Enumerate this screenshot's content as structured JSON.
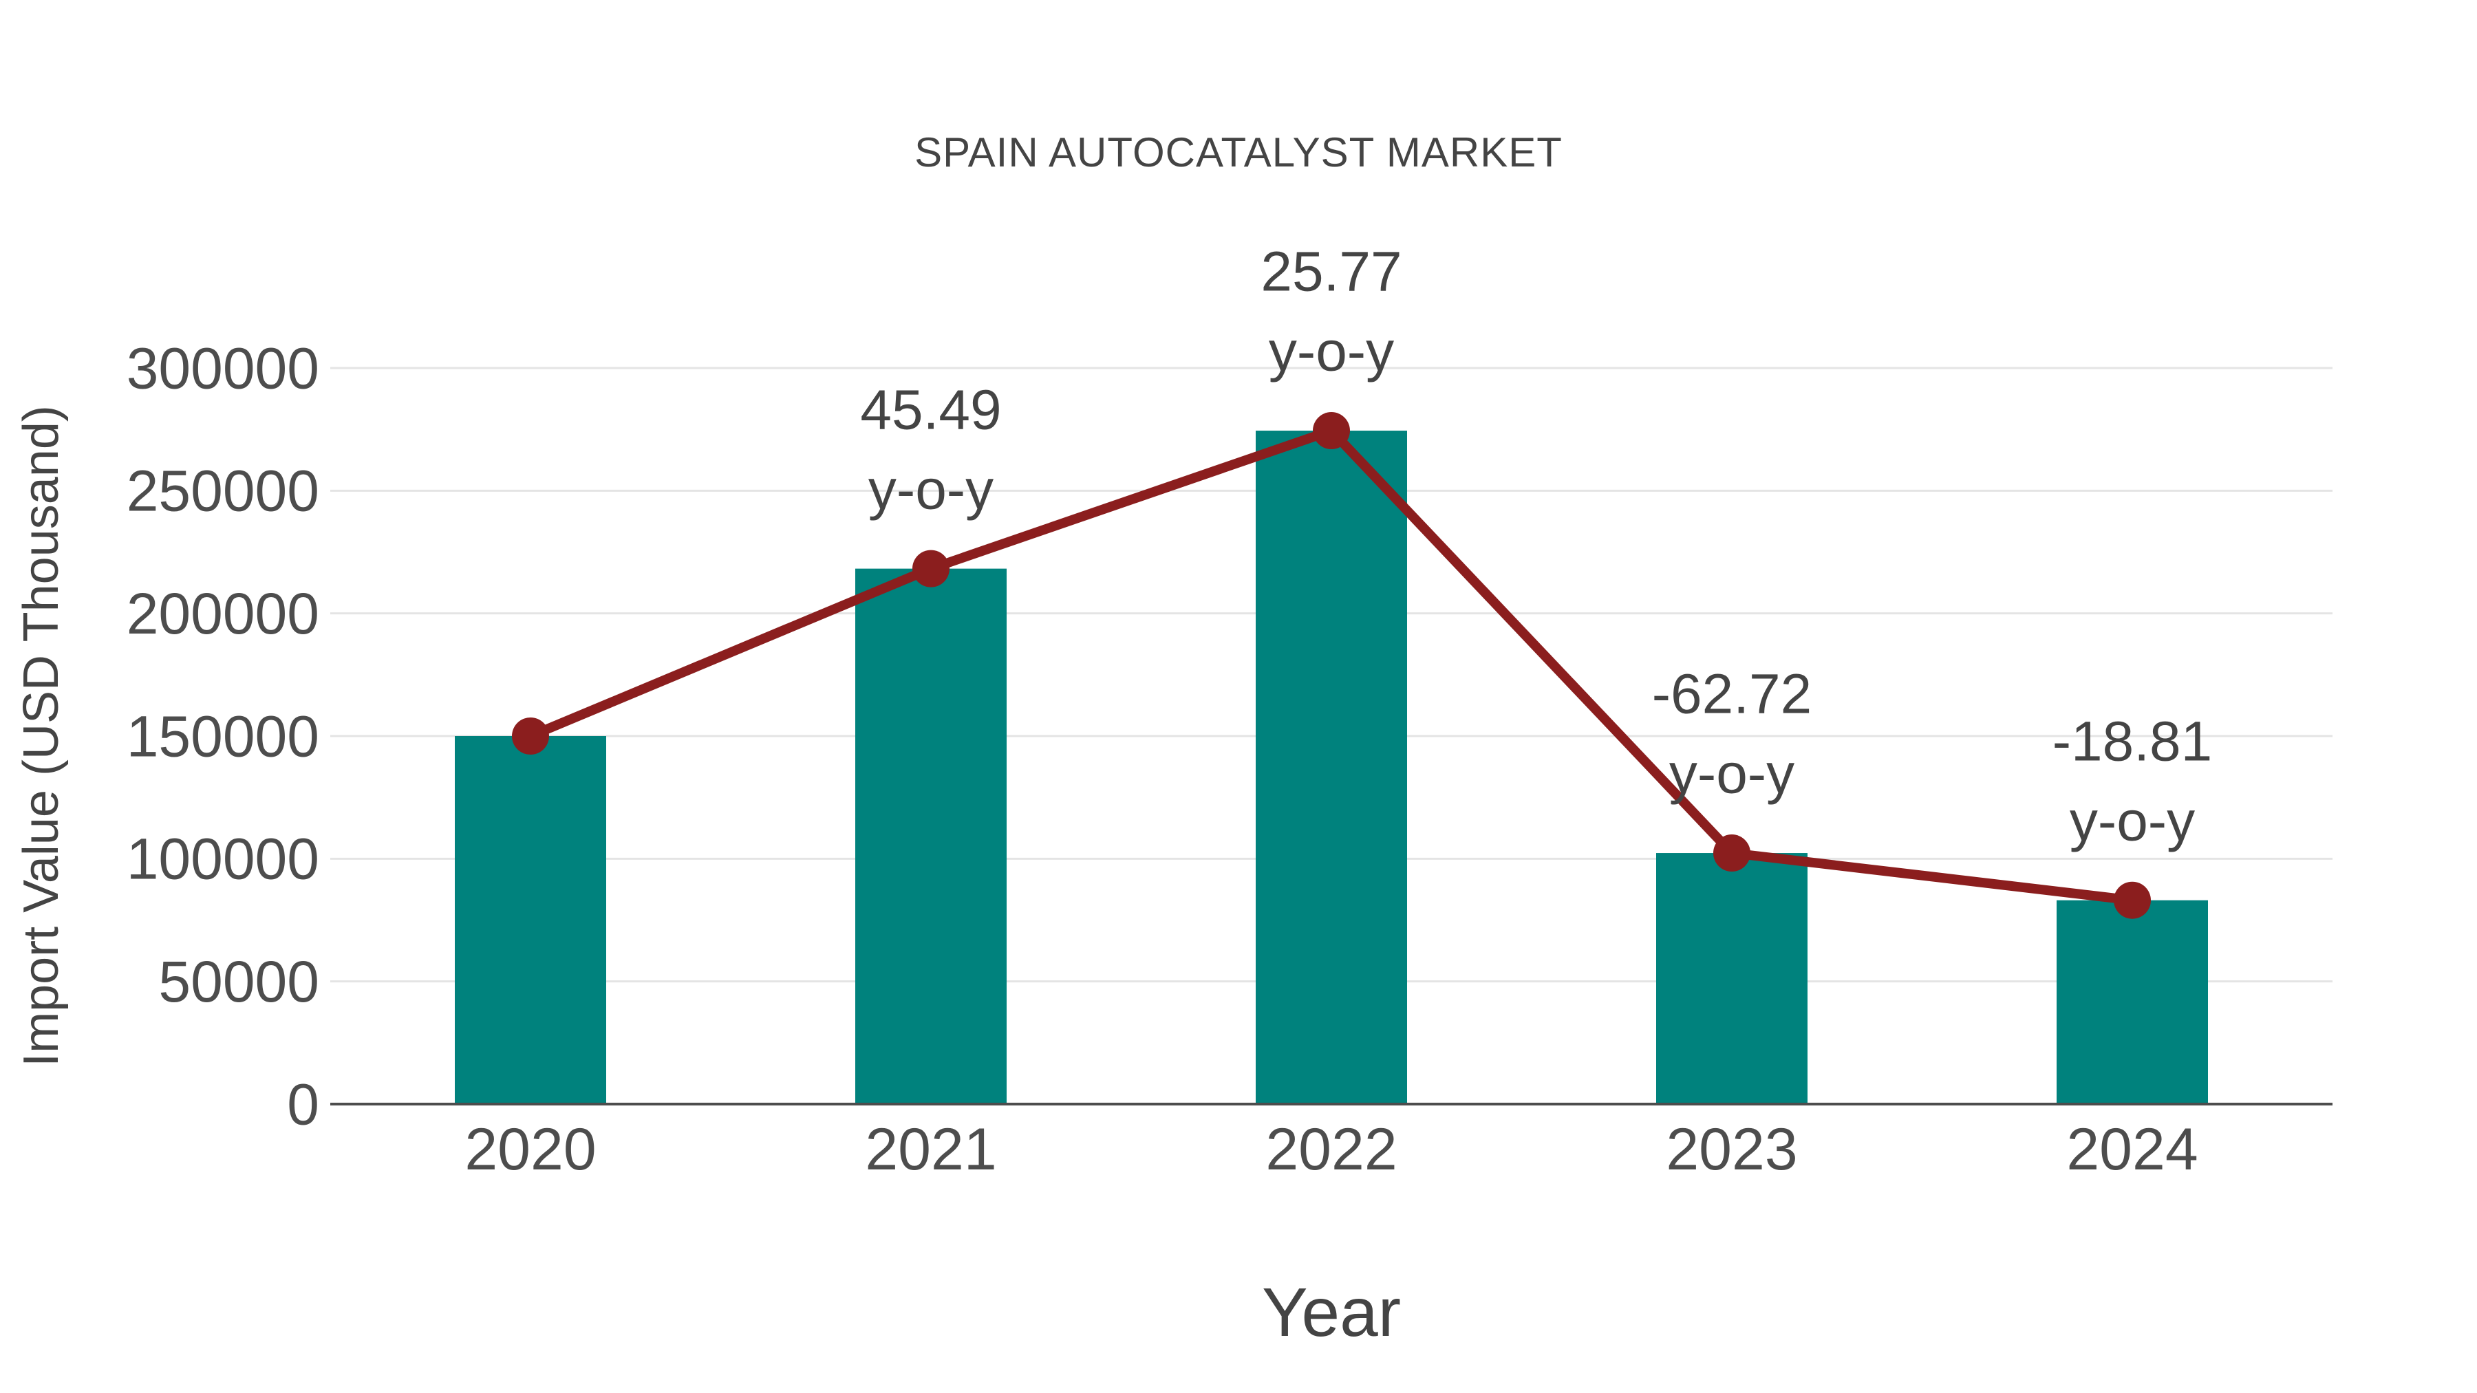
{
  "chart": {
    "colors": {
      "bar": "#00827D",
      "line": "#8B1E1E",
      "marker": "#8B1E1E",
      "text": "#444444",
      "tick_text": "#4D4D4D",
      "grid": "#E4E4E4",
      "axis": "#4D4D4D",
      "background": "#FFFFFF"
    }
  },
  "chart_data": {
    "type": "bar",
    "overlay": "line+markers",
    "title": "SPAIN AUTOCATALYST MARKET",
    "xlabel": "Year",
    "ylabel": "Import Value (USD Thousand)",
    "categories": [
      "2020",
      "2021",
      "2022",
      "2023",
      "2024"
    ],
    "values": [
      150000,
      218235,
      274474,
      102324,
      83077
    ],
    "yticks": [
      0,
      50000,
      100000,
      150000,
      200000,
      250000,
      300000
    ],
    "ylim": [
      0,
      300000
    ],
    "grid": true,
    "legend": false,
    "annotations": [
      {
        "category": "2021",
        "value_label": "45.49",
        "unit_label": "y-o-y"
      },
      {
        "category": "2022",
        "value_label": "25.77",
        "unit_label": "y-o-y"
      },
      {
        "category": "2023",
        "value_label": "-62.72",
        "unit_label": "y-o-y"
      },
      {
        "category": "2024",
        "value_label": "-18.81",
        "unit_label": "y-o-y"
      }
    ]
  }
}
